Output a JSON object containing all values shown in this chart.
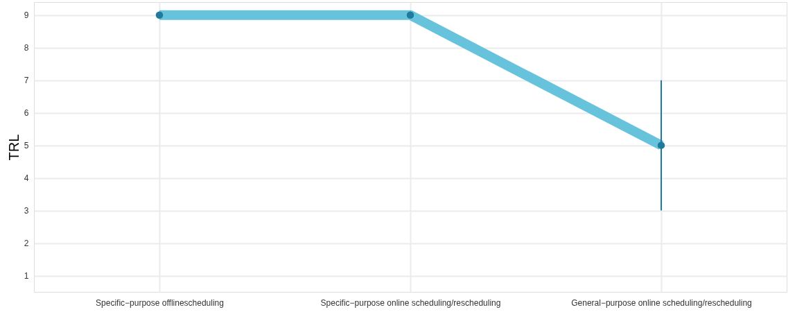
{
  "chart_data": {
    "type": "line",
    "ylabel": "TRL",
    "categories": [
      "Specific−purpose offlinescheduling",
      "Specific−purpose online scheduling/rescheduling",
      "General−purpose online scheduling/rescheduling"
    ],
    "series": [
      {
        "type": "line",
        "color": "#66c3db",
        "values": [
          9,
          9,
          5
        ],
        "marker": "none"
      },
      {
        "type": "scatter",
        "color": "#1f7a9c",
        "x": [
          "Specific−purpose offlinescheduling",
          "Specific−purpose online scheduling/rescheduling",
          "General−purpose online scheduling/rescheduling"
        ],
        "values": [
          9,
          9,
          5
        ],
        "errors": [
          null,
          null,
          [
            3,
            7
          ]
        ],
        "marker": "circle"
      }
    ],
    "ylim": [
      0.5,
      9.4
    ],
    "yticks": [
      1,
      2,
      3,
      4,
      5,
      6,
      7,
      8,
      9
    ],
    "grid": true
  }
}
